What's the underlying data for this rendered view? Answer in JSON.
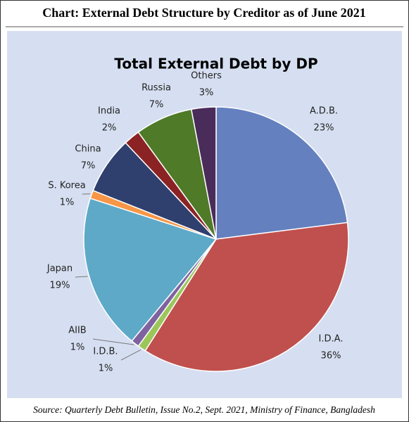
{
  "heading": "Chart: External Debt Structure by Creditor as of June 2021",
  "source": "Source: Quarterly Debt Bulletin, Issue No.2, Sept. 2021, Ministry of Finance, Bangladesh",
  "chart_data": {
    "type": "pie",
    "title": "Total External Debt by DP",
    "categories": [
      "A.D.B.",
      "I.D.A.",
      "I.D.B.",
      "AIIB",
      "Japan",
      "S. Korea",
      "China",
      "India",
      "Russia",
      "Others"
    ],
    "values": [
      23,
      36,
      1,
      1,
      19,
      1,
      7,
      2,
      7,
      3
    ],
    "value_labels": [
      "23%",
      "36%",
      "1%",
      "1%",
      "19%",
      "1%",
      "7%",
      "2%",
      "7%",
      "3%"
    ],
    "colors": [
      "#6480bf",
      "#c0504d",
      "#9bc75a",
      "#7e63a0",
      "#5ea9c8",
      "#f79646",
      "#2f3f6e",
      "#8b2324",
      "#4f7a28",
      "#4a2c5a"
    ]
  }
}
